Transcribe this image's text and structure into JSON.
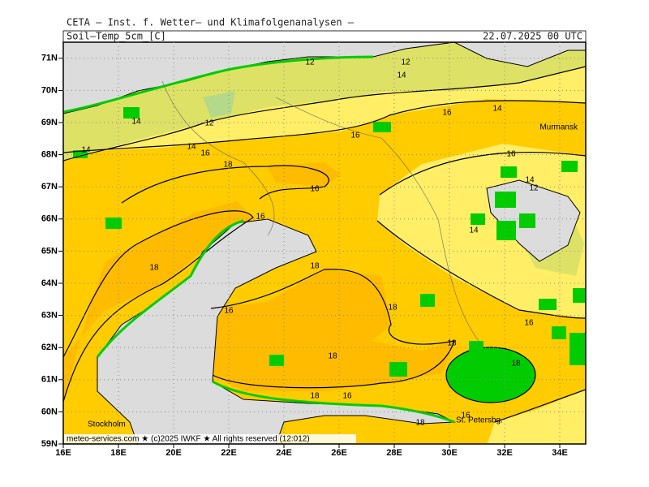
{
  "header": {
    "source": "CETA — Inst. f. Wetter— und Klimafolgenanalysen —",
    "variable": "Soil—Temp_5cm_[C]",
    "valid": "22.07.2025 00 UTC"
  },
  "map": {
    "lat_labels": [
      "59N",
      "60N",
      "61N",
      "62N",
      "63N",
      "64N",
      "65N",
      "66N",
      "67N",
      "68N",
      "69N",
      "70N",
      "71N"
    ],
    "lon_labels": [
      "16E",
      "18E",
      "20E",
      "22E",
      "24E",
      "26E",
      "28E",
      "30E",
      "32E",
      "34E"
    ],
    "contour_labels": [
      "12",
      "12",
      "14",
      "14",
      "12",
      "14",
      "14",
      "16",
      "18",
      "16",
      "16",
      "14",
      "16",
      "14",
      "12",
      "14",
      "16",
      "16",
      "18",
      "18",
      "16",
      "18",
      "16",
      "18",
      "18",
      "18",
      "18",
      "16",
      "18",
      "16"
    ],
    "places": [
      "Murmansk",
      "Stockholm",
      "St. Petersbg."
    ]
  },
  "footer": "meteo-services.com ★ (c)2025 IWKF ★ All rights reserved (12:012)"
}
